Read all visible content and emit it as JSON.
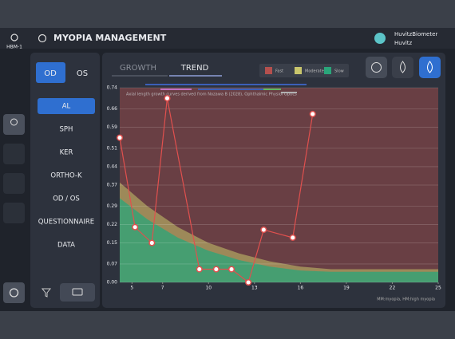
{
  "header": {
    "device": "HBM-1",
    "title": "MYOPIA MANAGEMENT",
    "user": "HuvitzBiometer",
    "org": "Huvitz"
  },
  "eye_tabs": [
    "OD",
    "OS"
  ],
  "menu": [
    "AL",
    "SPH",
    "KER",
    "ORTHO-K",
    "OD / OS",
    "QUESTIONNAIRE",
    "DATA"
  ],
  "chart_tabs": [
    "GROWTH",
    "TREND"
  ],
  "chart_data": {
    "type": "line",
    "note": "Axial length growth curves derived from Nozawa B (2028), Ophthalmic Physiol Optics",
    "footnote": "MM:myopia, HM:high myopia",
    "zones": [
      {
        "name": "Fast",
        "color": "#b4504e"
      },
      {
        "name": "Moderate",
        "color": "#c9c66c",
        "values": [
          0.38,
          0.29,
          0.21,
          0.15,
          0.11,
          0.08,
          0.06,
          0.05,
          0.05
        ]
      },
      {
        "name": "Slow",
        "color": "#2aa57a",
        "values": [
          0.32,
          0.24,
          0.17,
          0.12,
          0.085,
          0.06,
          0.045,
          0.04,
          0.04
        ]
      }
    ],
    "zone_x": [
      4.2,
      6,
      8,
      10,
      12,
      14,
      16,
      18,
      25
    ],
    "x": [
      4.2,
      5.2,
      6.3,
      7.3,
      9.4,
      10.5,
      11.5,
      12.6,
      13.6,
      15.5,
      16.8
    ],
    "series": [
      {
        "color": "#e0504e",
        "values": [
          0.55,
          0.21,
          0.15,
          0.7,
          0.05,
          0.05,
          0.05,
          0,
          0.2,
          0.17,
          0.64
        ]
      }
    ],
    "xlim": [
      4.2,
      25
    ],
    "xticks": [
      5,
      7,
      10,
      13,
      16,
      19,
      22,
      25
    ],
    "ylim": [
      0,
      0.74
    ],
    "yticks": [
      {
        "value": 0,
        "label": "0.00"
      },
      {
        "value": 0.07,
        "label": "0.07"
      },
      {
        "value": 0.15,
        "label": "0.15"
      },
      {
        "value": 0.22,
        "label": "0.22"
      },
      {
        "value": 0.29,
        "label": "0.29"
      },
      {
        "value": 0.37,
        "label": "0.37"
      },
      {
        "value": 0.44,
        "label": "0.44"
      },
      {
        "value": 0.51,
        "label": "0.51"
      },
      {
        "value": 0.59,
        "label": "0.59"
      },
      {
        "value": 0.66,
        "label": "0.66"
      },
      {
        "value": 0.74,
        "label": "0.74"
      }
    ],
    "grid": true
  }
}
